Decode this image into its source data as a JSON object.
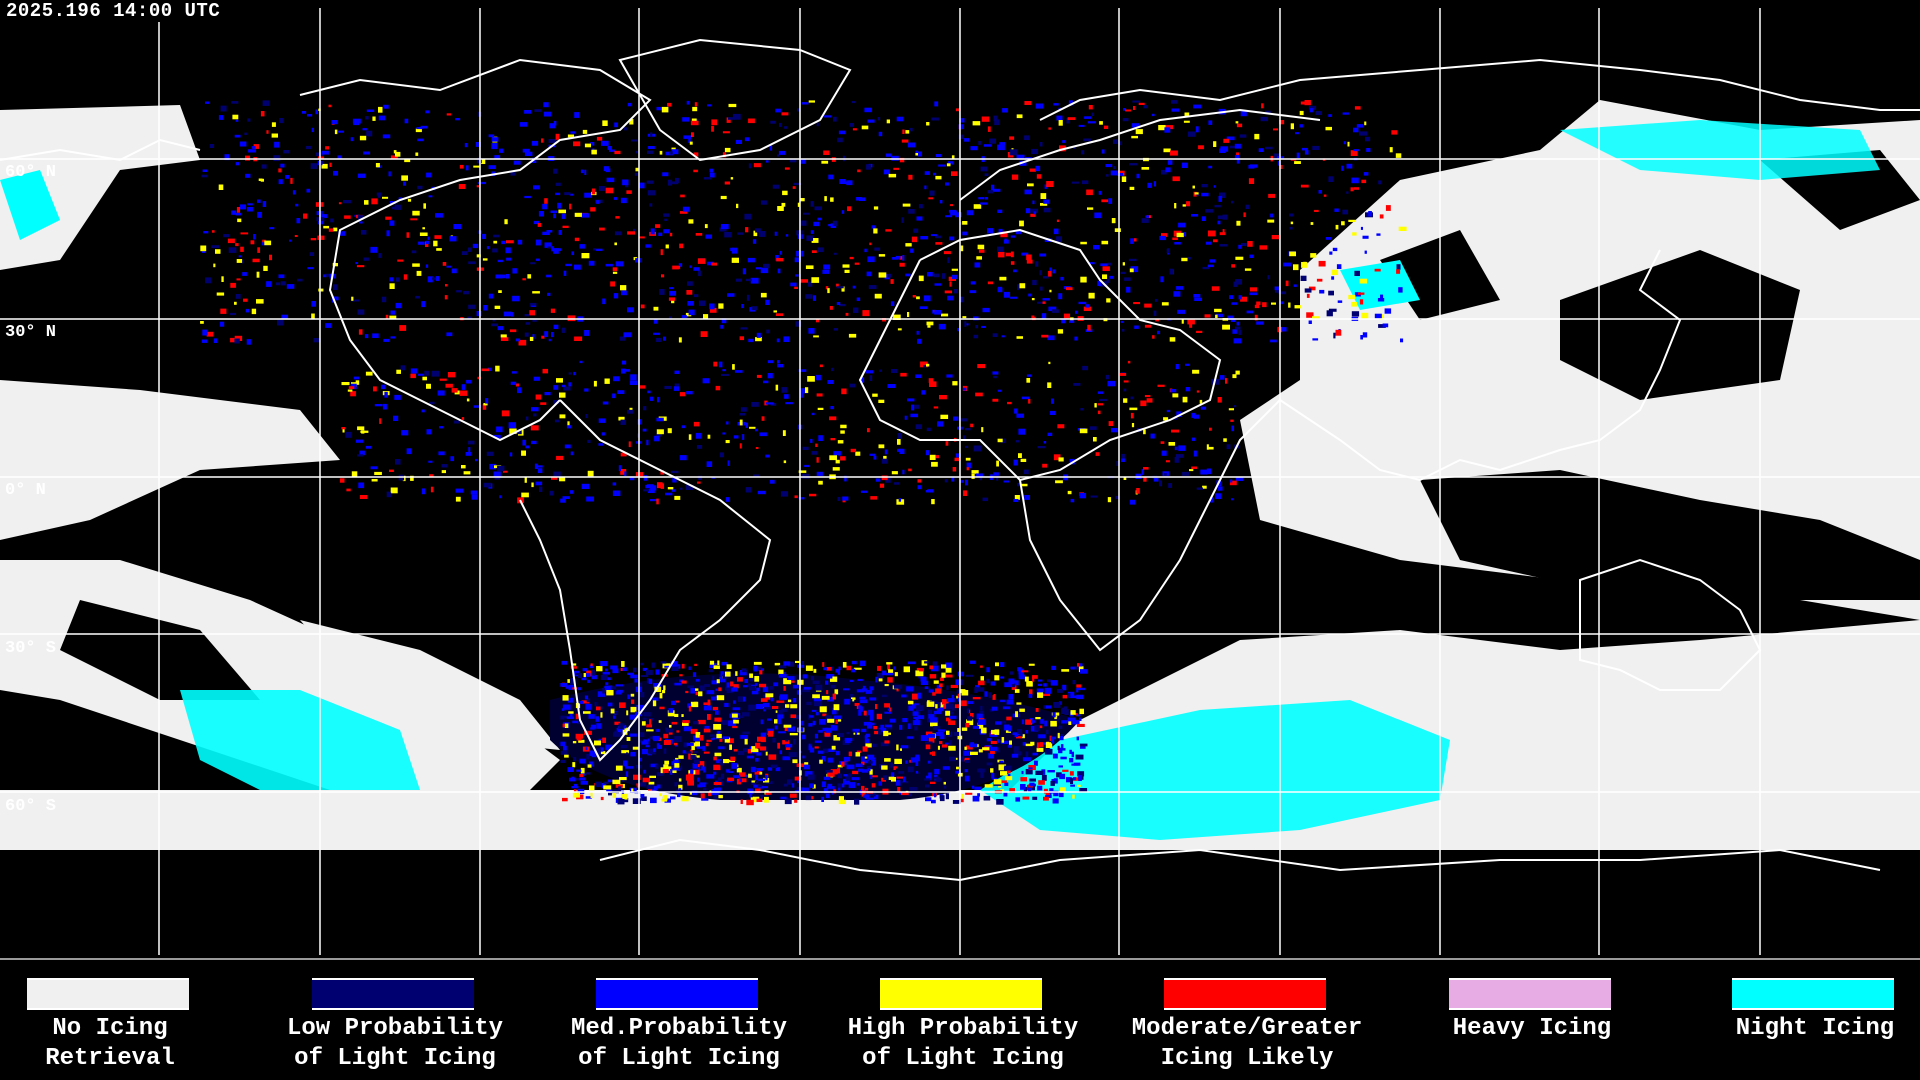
{
  "header": {
    "timestamp": "2025.196 14:00 UTC"
  },
  "map": {
    "lat_labels": [
      "60° N",
      "30° N",
      "0° N",
      "30° S",
      "60° S"
    ],
    "grid_color": "#ffffff",
    "coastline_color": "#ffffff"
  },
  "legend": {
    "items": [
      {
        "line1": "No Icing",
        "line2": "Retrieval",
        "color": "#f0f0f0"
      },
      {
        "line1": "Low Probability",
        "line2": "of Light Icing",
        "color": "#000070"
      },
      {
        "line1": "Med.Probability",
        "line2": "of Light Icing",
        "color": "#0000ff"
      },
      {
        "line1": "High Probability",
        "line2": "of Light Icing",
        "color": "#ffff00"
      },
      {
        "line1": "Moderate/Greater",
        "line2": "Icing Likely",
        "color": "#ff0000"
      },
      {
        "line1": "Heavy Icing",
        "line2": "",
        "color": "#e8acE4"
      },
      {
        "line1": "Night Icing",
        "line2": "",
        "color": "#00ffff"
      }
    ]
  }
}
